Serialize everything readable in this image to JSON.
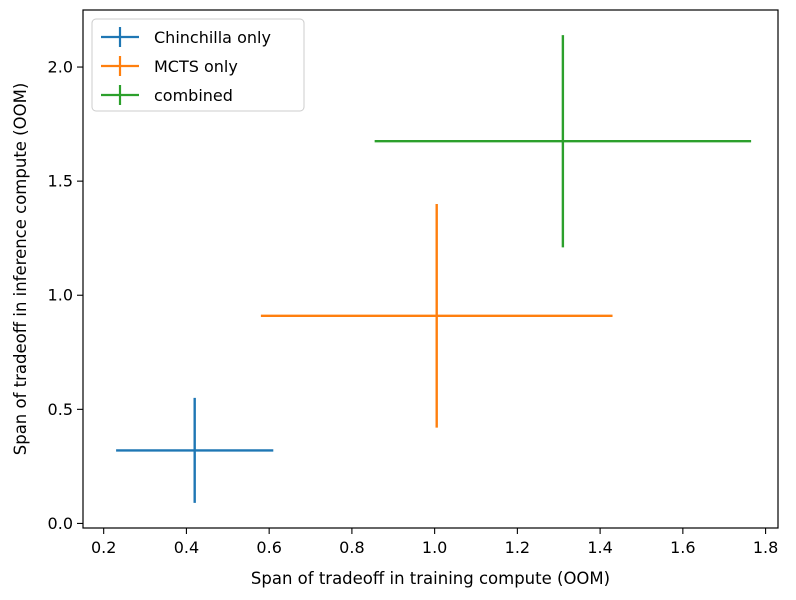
{
  "chart_data": {
    "type": "scatter",
    "subtype": "errorbar",
    "title": "",
    "xlabel": "Span of tradeoff in training compute (OOM)",
    "ylabel": "Span of tradeoff in inference compute (OOM)",
    "xlim": [
      0.15,
      1.83
    ],
    "ylim": [
      -0.02,
      2.25
    ],
    "xticks": [
      0.2,
      0.4,
      0.6,
      0.8,
      1.0,
      1.2,
      1.4,
      1.6,
      1.8
    ],
    "xtick_labels": [
      "0.2",
      "0.4",
      "0.6",
      "0.8",
      "1.0",
      "1.2",
      "1.4",
      "1.6",
      "1.8"
    ],
    "yticks": [
      0.0,
      0.5,
      1.0,
      1.5,
      2.0
    ],
    "ytick_labels": [
      "0.0",
      "0.5",
      "1.0",
      "1.5",
      "2.0"
    ],
    "grid": false,
    "legend_position": "top-left",
    "series": [
      {
        "name": "Chinchilla only",
        "color": "#1f77b4",
        "x": 0.42,
        "y": 0.32,
        "xerr": [
          0.19,
          0.19
        ],
        "yerr": [
          0.23,
          0.23
        ]
      },
      {
        "name": "MCTS only",
        "color": "#ff7f0e",
        "x": 1.005,
        "y": 0.91,
        "xerr": [
          0.425,
          0.425
        ],
        "yerr": [
          0.49,
          0.49
        ]
      },
      {
        "name": "combined",
        "color": "#2ca02c",
        "x": 1.31,
        "y": 1.675,
        "xerr": [
          0.455,
          0.455
        ],
        "yerr": [
          0.465,
          0.465
        ]
      }
    ]
  }
}
